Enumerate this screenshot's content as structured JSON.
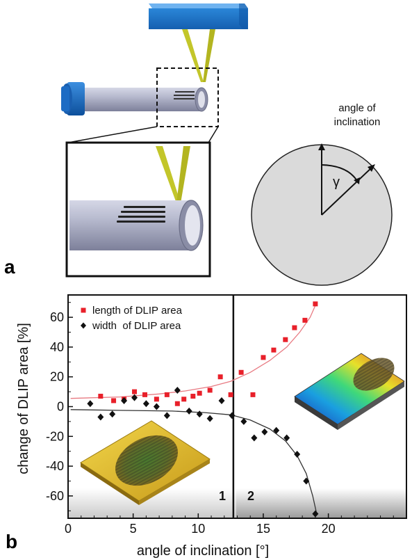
{
  "panel_a": {
    "label": "a",
    "angle_label_line1": "angle of",
    "angle_label_line2": "inclination",
    "gamma_symbol": "γ"
  },
  "panel_b": {
    "label": "b",
    "region_1_label": "1",
    "region_2_label": "2"
  },
  "chart_data": {
    "type": "scatter",
    "xlabel": "angle of inclination [°]",
    "ylabel": "change of DLIP area [%]",
    "xlim": [
      0,
      26
    ],
    "ylim": [
      -75,
      75
    ],
    "x_ticks": [
      0,
      5,
      10,
      15,
      20
    ],
    "y_ticks": [
      60,
      40,
      20,
      0,
      -20,
      -40,
      -60
    ],
    "grid": false,
    "legend_position": "top-left",
    "divider_x": 12.7,
    "series": [
      {
        "name": "length of DLIP area",
        "color": "#e8202a",
        "marker": "square",
        "points": [
          [
            2.5,
            7
          ],
          [
            3.5,
            4
          ],
          [
            4.3,
            5
          ],
          [
            5.1,
            10
          ],
          [
            5.9,
            8
          ],
          [
            6.8,
            5
          ],
          [
            7.6,
            8
          ],
          [
            8.4,
            2
          ],
          [
            8.9,
            5
          ],
          [
            9.6,
            7
          ],
          [
            10.1,
            9
          ],
          [
            10.9,
            11
          ],
          [
            11.7,
            20
          ],
          [
            12.5,
            8
          ],
          [
            13.3,
            23
          ],
          [
            14.2,
            8
          ],
          [
            15.0,
            33
          ],
          [
            15.8,
            38
          ],
          [
            16.7,
            45
          ],
          [
            17.4,
            53
          ],
          [
            18.2,
            58
          ],
          [
            19.0,
            69
          ]
        ],
        "fit": [
          [
            0.2,
            5.5
          ],
          [
            4,
            6.5
          ],
          [
            7,
            8.5
          ],
          [
            9,
            10.5
          ],
          [
            11,
            13.5
          ],
          [
            12.5,
            17
          ],
          [
            14,
            23
          ],
          [
            15.5,
            31
          ],
          [
            16.8,
            40
          ],
          [
            17.8,
            50
          ],
          [
            18.6,
            60
          ],
          [
            19.1,
            70
          ]
        ]
      },
      {
        "name": "width  of DLIP area",
        "color": "#111111",
        "marker": "diamond",
        "points": [
          [
            1.7,
            2
          ],
          [
            2.5,
            -7
          ],
          [
            3.4,
            -5
          ],
          [
            4.3,
            4
          ],
          [
            5.1,
            6
          ],
          [
            6.0,
            2
          ],
          [
            6.8,
            0
          ],
          [
            7.6,
            -6
          ],
          [
            8.4,
            11
          ],
          [
            9.3,
            -3
          ],
          [
            10.1,
            -5
          ],
          [
            10.9,
            -8
          ],
          [
            11.8,
            4
          ],
          [
            12.6,
            -6
          ],
          [
            13.5,
            -10
          ],
          [
            14.3,
            -21
          ],
          [
            15.1,
            -17
          ],
          [
            16.0,
            -16
          ],
          [
            16.8,
            -21
          ],
          [
            17.6,
            -32
          ],
          [
            18.3,
            -50
          ],
          [
            19.0,
            -72
          ]
        ],
        "fit": [
          [
            0.2,
            -2
          ],
          [
            4,
            -2.5
          ],
          [
            8,
            -3
          ],
          [
            10.5,
            -4
          ],
          [
            12.5,
            -5.5
          ],
          [
            14,
            -9
          ],
          [
            15.5,
            -15
          ],
          [
            16.7,
            -23
          ],
          [
            17.6,
            -33
          ],
          [
            18.3,
            -45
          ],
          [
            18.8,
            -60
          ],
          [
            19.1,
            -72
          ]
        ]
      }
    ]
  },
  "colors": {
    "blue_cap": "#1a6fc9",
    "yellow_beam": "#c7c92a",
    "tube": "#a9acc4",
    "circle_fill": "#dcdcdc"
  }
}
